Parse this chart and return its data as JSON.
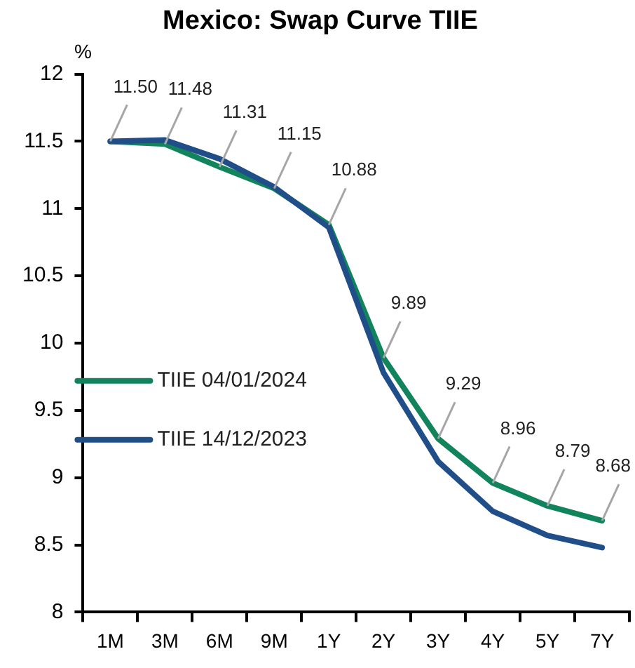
{
  "chart_data": {
    "type": "line",
    "title": "Mexico: Swap Curve TIIE",
    "ylabel": "%",
    "categories": [
      "1M",
      "3M",
      "6M",
      "9M",
      "1Y",
      "2Y",
      "3Y",
      "4Y",
      "5Y",
      "7Y"
    ],
    "series": [
      {
        "name": "TIIE 04/01/2024",
        "color": "#11845b",
        "values": [
          11.5,
          11.48,
          11.31,
          11.15,
          10.88,
          9.89,
          9.29,
          8.96,
          8.79,
          8.68
        ],
        "value_labels": [
          "11.50",
          "11.48",
          "11.31",
          "11.15",
          "10.88",
          "9.89",
          "9.29",
          "8.96",
          "8.79",
          "8.68"
        ]
      },
      {
        "name": "TIIE 14/12/2023",
        "color": "#1f4e89",
        "values": [
          11.5,
          11.51,
          11.37,
          11.16,
          10.86,
          9.78,
          9.12,
          8.75,
          8.57,
          8.48
        ]
      }
    ],
    "ylim": [
      8,
      12
    ],
    "yticks": [
      8,
      {
        "value": 8.5,
        "label": "8.5"
      },
      9,
      {
        "value": 9.5,
        "label": "9.5"
      },
      10,
      {
        "value": 10.5,
        "label": "10.5"
      },
      11,
      {
        "value": 11.5,
        "label": "11.5"
      },
      12
    ],
    "grid": false,
    "legend": "left",
    "marker": "none",
    "line_style": "solid"
  }
}
